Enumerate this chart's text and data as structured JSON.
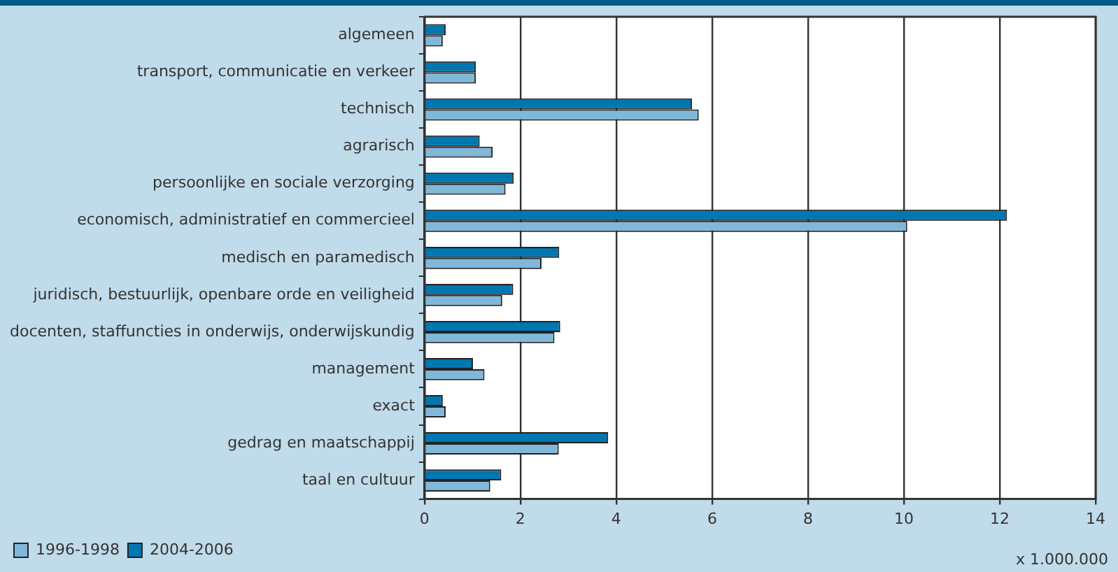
{
  "chart_data": {
    "type": "bar",
    "orientation": "horizontal",
    "categories": [
      "algemeen",
      "transport, communicatie en verkeer",
      "technisch",
      "agrarisch",
      "persoonlijke en sociale verzorging",
      "economisch, administratief en commercieel",
      "medisch en paramedisch",
      "juridisch, bestuurlijk, openbare orde en veiligheid",
      "docenten, staffuncties in onderwijs, onderwijskundig",
      "management",
      "exact",
      "gedrag en maatschappij",
      "taal en cultuur"
    ],
    "series": [
      {
        "name": "1996-1998",
        "color": "#80b8da",
        "values": [
          0.38,
          1.07,
          5.72,
          1.42,
          1.69,
          10.07,
          2.44,
          1.62,
          2.71,
          1.25,
          0.44,
          2.8,
          1.37
        ]
      },
      {
        "name": "2004-2006",
        "color": "#0077b0",
        "values": [
          0.44,
          1.07,
          5.58,
          1.15,
          1.86,
          12.15,
          2.81,
          1.85,
          2.83,
          1.01,
          0.38,
          3.83,
          1.6
        ]
      }
    ],
    "xlim": [
      0,
      14
    ],
    "xticks": [
      0,
      2,
      4,
      6,
      8,
      10,
      12,
      14
    ],
    "grid": "x",
    "legend": "bottom left",
    "annotations": [
      "x 1.000.000"
    ]
  }
}
